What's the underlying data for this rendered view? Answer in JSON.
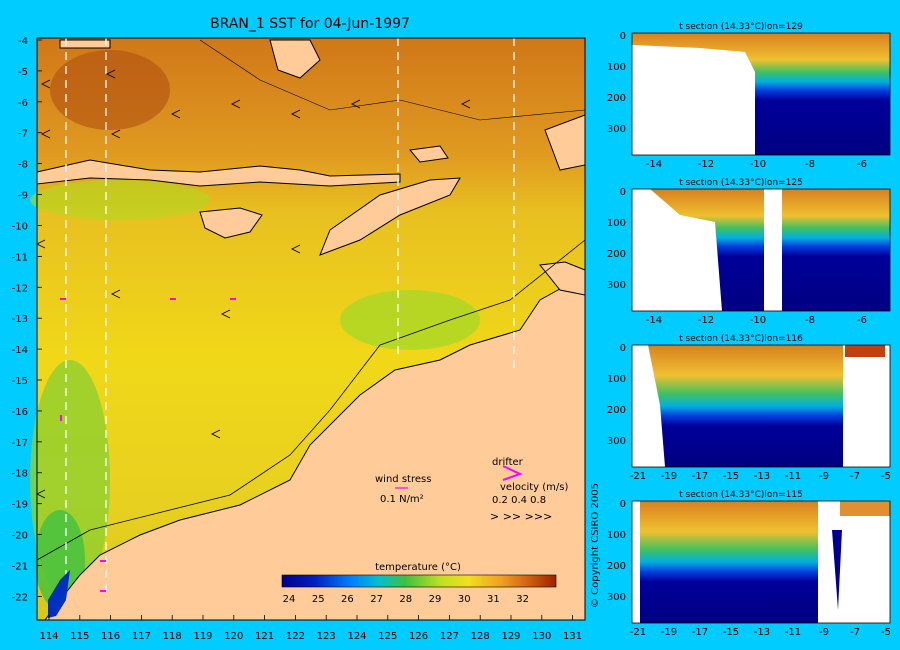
{
  "title": "BRAN_1 SST for 04-Jun-1997",
  "map": {
    "lat_ticks": [
      "-4",
      "-5",
      "-6",
      "-7",
      "-8",
      "-9",
      "-10",
      "-11",
      "-12",
      "-13",
      "-14",
      "-15",
      "-16",
      "-17",
      "-18",
      "-19",
      "-20",
      "-21",
      "-22"
    ],
    "lon_ticks": [
      "114",
      "115",
      "116",
      "117",
      "118",
      "119",
      "120",
      "121",
      "122",
      "123",
      "124",
      "125",
      "126",
      "127",
      "128",
      "129",
      "130",
      "131"
    ],
    "legend": {
      "wind_stress_label": "wind stress",
      "wind_stress_unit": "0.1 N/m²",
      "drifter_label": "drifter",
      "velocity_label": "velocity (m/s)",
      "velocity_values": "0.2 0.4 0.8",
      "velocity_arrows": ">  >>  >>>"
    },
    "colorbar": {
      "title": "temperature (°C)",
      "ticks": [
        "24",
        "25",
        "26",
        "27",
        "28",
        "29",
        "30",
        "31",
        "32"
      ]
    },
    "colors": {
      "land": "#ffcc99",
      "sea_warm": "#e8a020",
      "sea_mid": "#f0d020",
      "sea_cool": "#c8e020",
      "sea_cold": "#40c040",
      "drifter": "#ff00ff"
    }
  },
  "sections": [
    {
      "title": "t section (14.33°C)lon=129",
      "x_ticks": [
        "-14",
        "-12",
        "-10",
        "-8",
        "-6"
      ],
      "y_ticks": [
        "0",
        "100",
        "200",
        "300"
      ]
    },
    {
      "title": "t section (14.33°C)lon=125",
      "x_ticks": [
        "-14",
        "-12",
        "-10",
        "-8",
        "-6"
      ],
      "y_ticks": [
        "0",
        "100",
        "200",
        "300"
      ]
    },
    {
      "title": "t section (14.33°C)lon=116",
      "x_ticks": [
        "-21",
        "-19",
        "-17",
        "-15",
        "-13",
        "-11",
        "-9",
        "-7",
        "-5"
      ],
      "y_ticks": [
        "0",
        "100",
        "200",
        "300"
      ]
    },
    {
      "title": "t section (14.33°C)lon=115",
      "x_ticks": [
        "-21",
        "-19",
        "-17",
        "-15",
        "-13",
        "-11",
        "-9",
        "-7",
        "-5"
      ],
      "y_ticks": [
        "0",
        "100",
        "200",
        "300"
      ]
    }
  ],
  "copyright": "© Copyright CSIRO 2005"
}
